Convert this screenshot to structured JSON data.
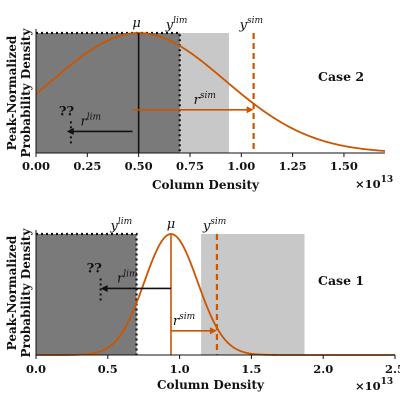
{
  "chart_data": [
    {
      "type": "area",
      "case_label": "Case 2",
      "xlabel": "Column Density",
      "ylabel_line1": "Peak-Normalized",
      "ylabel_line2": "Probability Density",
      "x_multiplier": "×10",
      "x_multiplier_exp": "13",
      "xlim": [
        0,
        1.7
      ],
      "ylim": [
        0,
        1.0
      ],
      "xticks": [
        "0.00",
        "0.25",
        "0.50",
        "0.75",
        "1.00",
        "1.25",
        "1.50"
      ],
      "xtick_values": [
        0,
        0.25,
        0.5,
        0.75,
        1.0,
        1.25,
        1.5
      ],
      "mu": 0.5,
      "sigma": 0.42,
      "y_lim": 0.7,
      "y_sim": 1.06,
      "light_band": [
        0,
        0.94
      ],
      "dark_band": [
        0,
        0.7
      ],
      "ylim_dotted_box": [
        0,
        0.7
      ],
      "r_sim_arrow": [
        0.47,
        1.06
      ],
      "r_sim_y": 0.36,
      "r_lim_arrow": [
        0.47,
        0.15
      ],
      "r_lim_y": 0.18,
      "qq_x": 0.17,
      "labels": {
        "mu": "μ",
        "ylim": "y",
        "ylim_sup": "lim",
        "ysim": "y",
        "ysim_sup": "sim",
        "rsim": "r",
        "rsim_sup": "sim",
        "rlim": "r",
        "rlim_sup": "lim",
        "qq": "??"
      }
    },
    {
      "type": "area",
      "case_label": "Case 1",
      "xlabel": "Column Density",
      "ylabel_line1": "Peak-Normalized",
      "ylabel_line2": "Probability Density",
      "x_multiplier": "×10",
      "x_multiplier_exp": "13",
      "xlim": [
        0,
        2.5
      ],
      "ylim": [
        0,
        1.0
      ],
      "xticks": [
        "0.0",
        "0.5",
        "1.0",
        "1.5",
        "2.0",
        "2.5"
      ],
      "xtick_values": [
        0,
        0.5,
        1.0,
        1.5,
        2.0,
        2.5
      ],
      "mu": 0.94,
      "sigma": 0.185,
      "y_lim": 0.7,
      "y_sim": 1.26,
      "light_band": [
        1.15,
        1.87
      ],
      "dark_band": [
        0,
        0.7
      ],
      "ylim_dotted_box": [
        0,
        0.7
      ],
      "r_sim_arrow": [
        0.94,
        1.26
      ],
      "r_sim_y": 0.2,
      "r_lim_arrow": [
        0.94,
        0.45
      ],
      "r_lim_y": 0.55,
      "qq_x": 0.45,
      "labels": {
        "mu": "μ",
        "ylim": "y",
        "ylim_sup": "lim",
        "ysim": "y",
        "ysim_sup": "sim",
        "rsim": "r",
        "rsim_sup": "sim",
        "rlim": "r",
        "rlim_sup": "lim",
        "qq": "??"
      }
    }
  ],
  "colors": {
    "curve": "#cc5500",
    "dark_band": "#7a7a7a",
    "light_band": "#c8c8c8",
    "text": "#111111"
  }
}
